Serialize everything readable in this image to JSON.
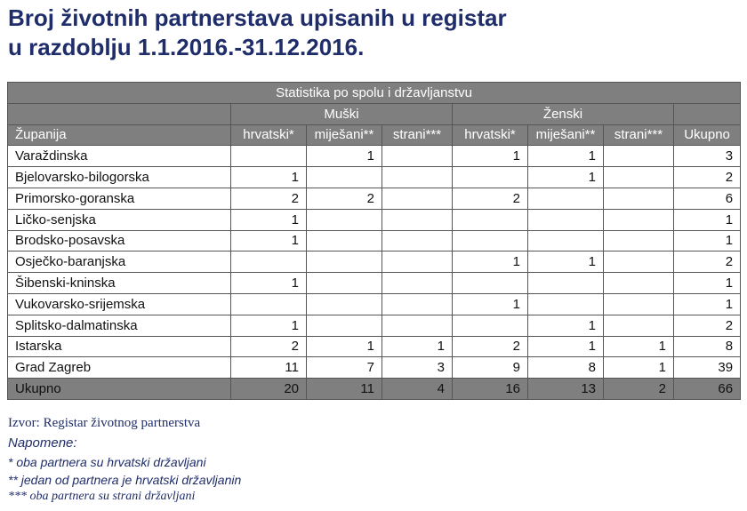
{
  "title": {
    "line1": "Broj životnih partnerstava upisanih u registar",
    "line2": "u razdoblju 1.1.2016.-31.12.2016."
  },
  "table": {
    "caption": "Statistika po spolu i državljanstvu",
    "group_male": "Muški",
    "group_female": "Ženski",
    "col_region": "Županija",
    "columns": [
      "hrvatski*",
      "miješani**",
      "strani***",
      "hrvatski*",
      "miješani**",
      "strani***",
      "Ukupno"
    ],
    "rows": [
      {
        "name": "Varaždinska",
        "values": [
          "",
          "1",
          "",
          "1",
          "1",
          "",
          "3"
        ]
      },
      {
        "name": "Bjelovarsko-bilogorska",
        "values": [
          "1",
          "",
          "",
          "",
          "1",
          "",
          "2"
        ]
      },
      {
        "name": "Primorsko-goranska",
        "values": [
          "2",
          "2",
          "",
          "2",
          "",
          "",
          "6"
        ]
      },
      {
        "name": "Ličko-senjska",
        "values": [
          "1",
          "",
          "",
          "",
          "",
          "",
          "1"
        ]
      },
      {
        "name": "Brodsko-posavska",
        "values": [
          "1",
          "",
          "",
          "",
          "",
          "",
          "1"
        ]
      },
      {
        "name": "Osječko-baranjska",
        "values": [
          "",
          "",
          "",
          "1",
          "1",
          "",
          "2"
        ]
      },
      {
        "name": "Šibenski-kninska",
        "values": [
          "1",
          "",
          "",
          "",
          "",
          "",
          "1"
        ]
      },
      {
        "name": "Vukovarsko-srijemska",
        "values": [
          "",
          "",
          "",
          "1",
          "",
          "",
          "1"
        ]
      },
      {
        "name": "Splitsko-dalmatinska",
        "values": [
          "1",
          "",
          "",
          "",
          "1",
          "",
          "2"
        ]
      },
      {
        "name": "Istarska",
        "values": [
          "2",
          "1",
          "1",
          "2",
          "1",
          "1",
          "8"
        ]
      },
      {
        "name": "Grad Zagreb",
        "values": [
          "11",
          "7",
          "3",
          "9",
          "8",
          "1",
          "39"
        ]
      }
    ],
    "total": {
      "name": "Ukupno",
      "values": [
        "20",
        "11",
        "4",
        "16",
        "13",
        "2",
        "66"
      ]
    }
  },
  "source": "Izvor: Registar životnog partnerstva",
  "notes": {
    "title": "Napomene:",
    "items": [
      "* oba partnera su hrvatski državljani",
      "** jedan od partnera je hrvatski državljanin",
      "*** oba partnera su strani državljani"
    ]
  },
  "colors": {
    "title_text": "#1f2d6b",
    "header_background": "#7f7f7f",
    "header_text": "#ffffff"
  }
}
